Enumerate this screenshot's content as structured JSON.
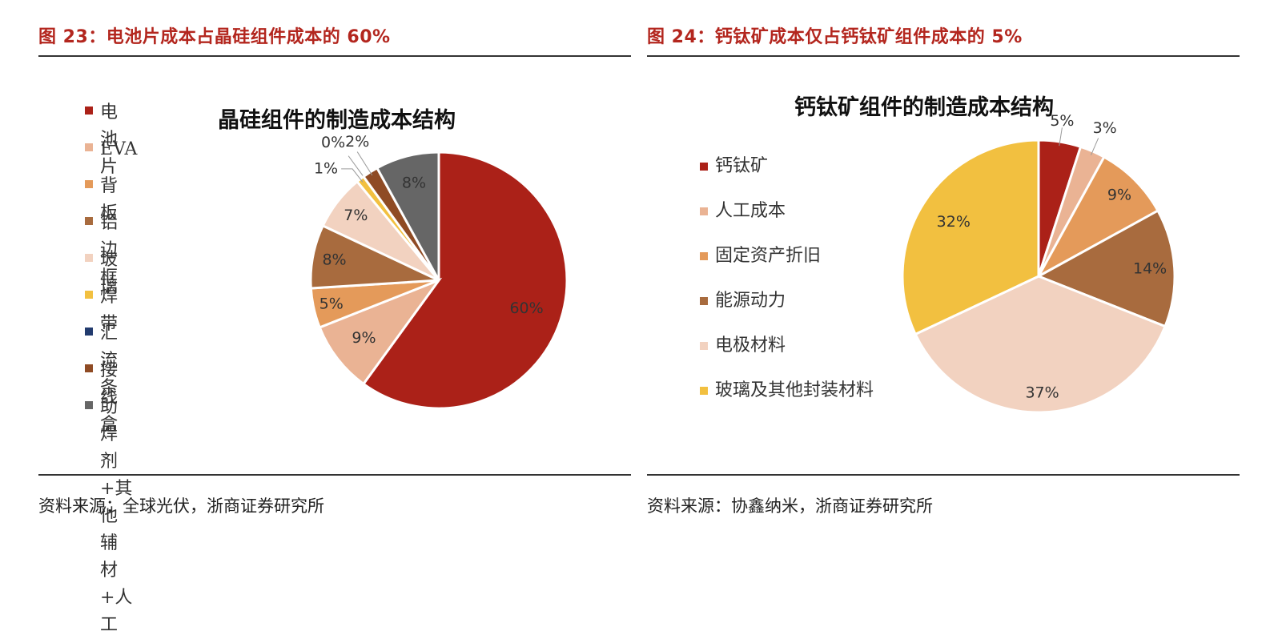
{
  "left": {
    "figure_title": "图 23：电池片成本占晶硅组件成本的 60%",
    "source": "资料来源：全球光伏，浙商证券研究所"
  },
  "right": {
    "figure_title": "图 24：钙钛矿成本仅占钙钛矿组件成本的 5%",
    "source": "资料来源：协鑫纳米，浙商证券研究所"
  },
  "chart_data": [
    {
      "type": "pie",
      "title": "晶硅组件的制造成本结构",
      "legend_position": "left",
      "categories": [
        "电池片",
        "EVA",
        "背板",
        "铝边框",
        "玻璃",
        "焊带",
        "汇流条",
        "接线盒",
        "助焊剂+其他辅材+人工"
      ],
      "values": [
        60,
        9,
        5,
        8,
        7,
        1,
        0,
        2,
        8
      ],
      "labels": [
        "60%",
        "9%",
        "5%",
        "8%",
        "7%",
        "1%",
        "0%",
        "2%",
        "8%"
      ],
      "colors": [
        "#ab2118",
        "#eab394",
        "#e49a5a",
        "#a86b3e",
        "#f2d2c0",
        "#f2c040",
        "#223b6e",
        "#8f4b24",
        "#666666"
      ]
    },
    {
      "type": "pie",
      "title": "钙钛矿组件的制造成本结构",
      "legend_position": "left",
      "categories": [
        "钙钛矿",
        "人工成本",
        "固定资产折旧",
        "能源动力",
        "电极材料",
        "玻璃及其他封装材料"
      ],
      "values": [
        5,
        3,
        9,
        14,
        37,
        32
      ],
      "labels": [
        "5%",
        "3%",
        "9%",
        "14%",
        "37%",
        "32%"
      ],
      "colors": [
        "#ab2118",
        "#eab394",
        "#e49a5a",
        "#a86b3e",
        "#f2d2c0",
        "#f2c040"
      ]
    }
  ]
}
